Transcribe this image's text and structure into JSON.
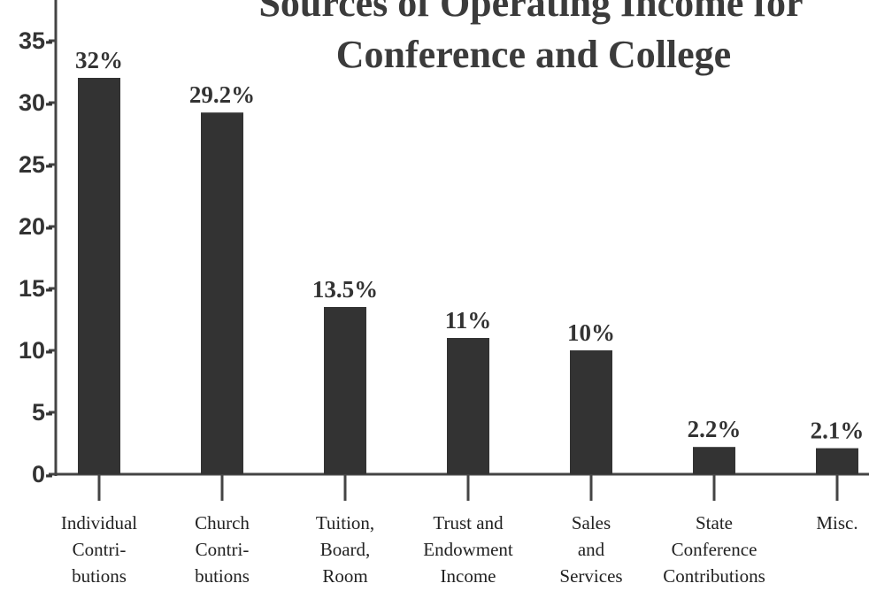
{
  "chart_data": {
    "type": "bar",
    "title_lines": [
      "Sources of Operating Income for",
      "Conference and College"
    ],
    "categories": [
      [
        "Individual",
        "Contri-",
        "butions"
      ],
      [
        "Church",
        "Contri-",
        "butions"
      ],
      [
        "Tuition,",
        "Board,",
        "Room"
      ],
      [
        "Trust and",
        "Endowment",
        "Income"
      ],
      [
        "Sales",
        "and",
        "Services"
      ],
      [
        "State",
        "Conference",
        "Contributions"
      ],
      [
        "Misc."
      ]
    ],
    "values": [
      32,
      29.2,
      13.5,
      11,
      10,
      2.2,
      2.1
    ],
    "data_labels": [
      "32%",
      "29.2%",
      "13.5%",
      "11%",
      "10%",
      "2.2%",
      "2.1%"
    ],
    "ylim": [
      0,
      37
    ],
    "yticks": [
      0,
      5,
      10,
      15,
      20,
      25,
      30,
      35
    ],
    "ytick_labels": [
      "0-",
      "5-",
      "10-",
      "15-",
      "20-",
      "25-",
      "30-",
      "35-"
    ],
    "grid": false,
    "colors": {
      "bar": "#333333",
      "text": "#333333",
      "background": "#ffffff"
    }
  }
}
